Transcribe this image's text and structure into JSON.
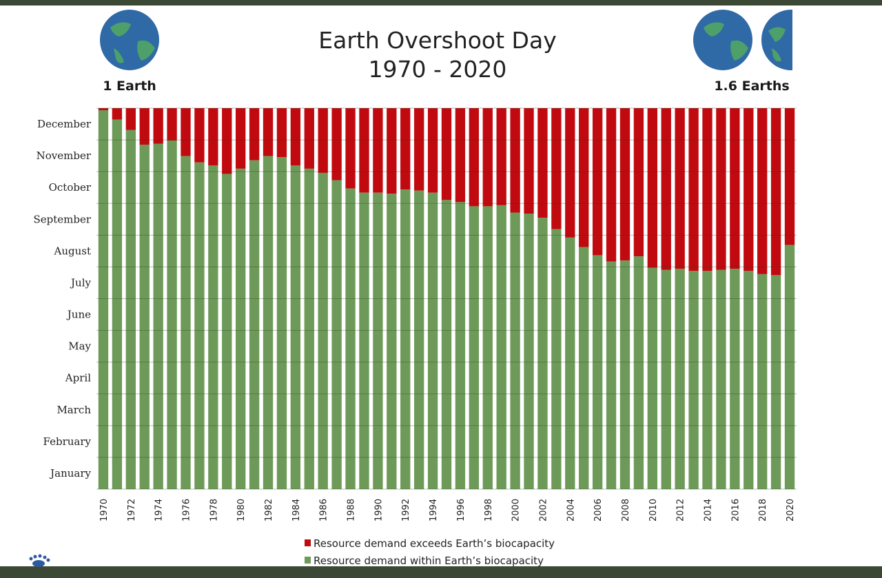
{
  "chart_data": {
    "type": "bar",
    "stacked": true,
    "title": [
      "Earth Overshoot Day",
      "1970 - 2020"
    ],
    "left_badge": "1 Earth",
    "right_badge": "1.6 Earths",
    "xlabel": "",
    "ylabel": "",
    "y_unit": "day of year",
    "ylim": [
      0,
      365
    ],
    "y_tick_labels": [
      "January",
      "February",
      "March",
      "April",
      "May",
      "June",
      "July",
      "August",
      "September",
      "October",
      "November",
      "December"
    ],
    "x_tick_labels": [
      "1970",
      "1972",
      "1974",
      "1976",
      "1978",
      "1980",
      "1982",
      "1984",
      "1986",
      "1988",
      "1990",
      "1992",
      "1994",
      "1996",
      "1998",
      "2000",
      "2002",
      "2004",
      "2006",
      "2008",
      "2010",
      "2012",
      "2014",
      "2016",
      "2018",
      "2020"
    ],
    "categories": [
      1970,
      1971,
      1972,
      1973,
      1974,
      1975,
      1976,
      1977,
      1978,
      1979,
      1980,
      1981,
      1982,
      1983,
      1984,
      1985,
      1986,
      1987,
      1988,
      1989,
      1990,
      1991,
      1992,
      1993,
      1994,
      1995,
      1996,
      1997,
      1998,
      1999,
      2000,
      2001,
      2002,
      2003,
      2004,
      2005,
      2006,
      2007,
      2008,
      2009,
      2010,
      2011,
      2012,
      2013,
      2014,
      2015,
      2016,
      2017,
      2018,
      2019,
      2020
    ],
    "values": [
      363,
      354,
      344,
      330,
      331,
      334,
      319,
      313,
      310,
      302,
      307,
      315,
      319,
      318,
      310,
      307,
      303,
      296,
      288,
      284,
      284,
      283,
      287,
      286,
      284,
      277,
      275,
      271,
      271,
      272,
      265,
      264,
      260,
      249,
      241,
      232,
      224,
      218,
      219,
      223,
      212,
      210,
      211,
      209,
      209,
      210,
      211,
      209,
      206,
      205,
      234
    ],
    "series": [
      {
        "name": "Resource demand within Earth's biocapacity",
        "color": "#6e9a59"
      },
      {
        "name": "Resource demand exceeds Earth's biocapacity",
        "color": "#c10a10"
      }
    ],
    "legend_labels": [
      "Resource demand exceeds Earth’s biocapacity",
      "Resource demand within Earth’s biocapacity"
    ],
    "legend_position": "bottom",
    "grid": true
  }
}
